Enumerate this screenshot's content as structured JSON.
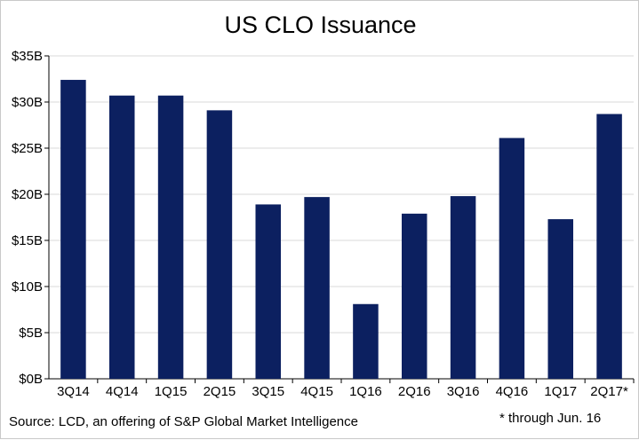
{
  "chart_data": {
    "type": "bar",
    "title": "US CLO Issuance",
    "xlabel": "",
    "ylabel": "",
    "categories": [
      "3Q14",
      "4Q14",
      "1Q15",
      "2Q15",
      "3Q15",
      "4Q15",
      "1Q16",
      "2Q16",
      "3Q16",
      "4Q16",
      "1Q17",
      "2Q17*"
    ],
    "values": [
      32.4,
      30.7,
      30.7,
      29.1,
      18.9,
      19.7,
      8.1,
      17.9,
      19.8,
      26.1,
      17.3,
      28.7
    ],
    "ylim": [
      0,
      35
    ],
    "yticks": [
      0,
      5,
      10,
      15,
      20,
      25,
      30,
      35
    ],
    "ytick_labels": [
      "$0B",
      "$5B",
      "$10B",
      "$15B",
      "$20B",
      "$25B",
      "$30B",
      "$35B"
    ],
    "bar_color": "#0c2060",
    "grid": true,
    "legend": "none"
  },
  "source_note": "Source: LCD, an offering  of S&P Global Market Intelligence",
  "footnote": "* through Jun. 16"
}
